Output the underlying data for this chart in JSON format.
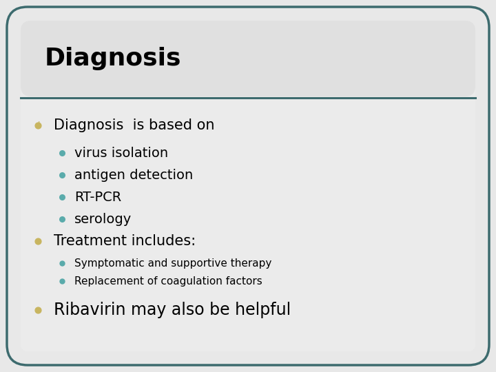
{
  "title": "Diagnosis",
  "title_color": "#000000",
  "title_fontsize": 26,
  "background_color": "#e8e8e8",
  "outer_border_color": "#3d6b6e",
  "divider_color": "#3d6b6e",
  "content_bg": "#ebebeb",
  "bullet1_color": "#c8b560",
  "bullet2_color": "#5aabab",
  "main_bullet1": "Diagnosis  is based on",
  "sub_bullets1": [
    "virus isolation",
    "antigen detection",
    "RT-PCR",
    "serology"
  ],
  "main_bullet2": "Treatment includes:",
  "sub_bullets2": [
    "Symptomatic and supportive therapy",
    "Replacement of coagulation factors"
  ],
  "main_bullet3": "Ribavirin may also be helpful",
  "main_fontsize": 15,
  "sub_fontsize": 14,
  "sub_fontsize_small": 11,
  "main_bullet3_fontsize": 17
}
